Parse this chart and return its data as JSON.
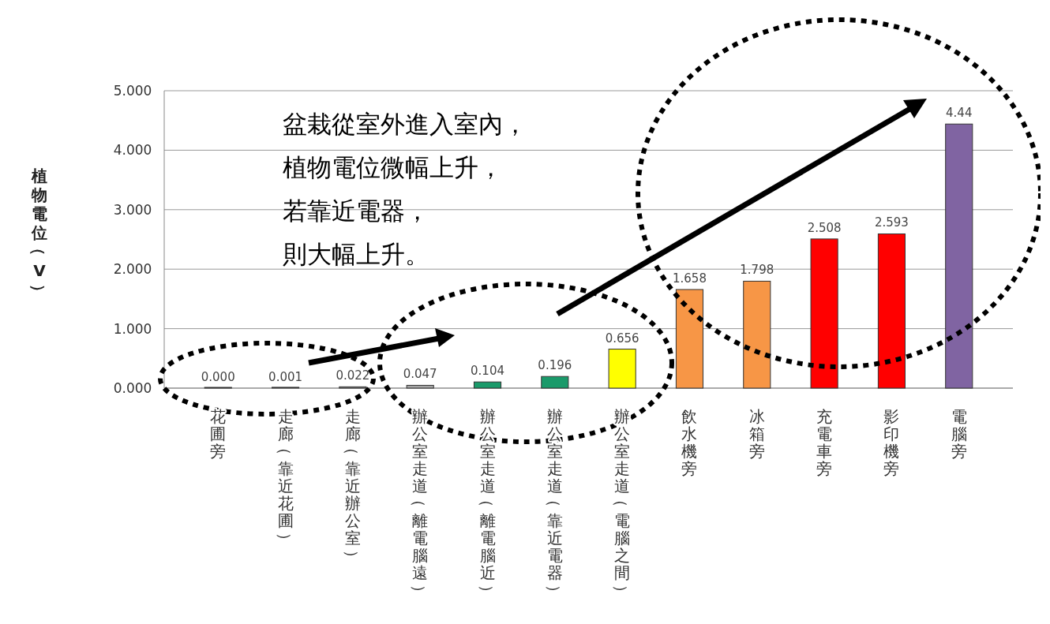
{
  "chart_data": {
    "type": "bar",
    "ylabel": "植物電位（V）",
    "categories": [
      "花圃旁",
      "走廊（靠近花圃）",
      "走廊（靠近辦公室）",
      "辦公室走道（離電腦遠）",
      "辦公室走道（離電腦近）",
      "辦公室走道（靠近電器）",
      "辦公室走道（電腦之間）",
      "飲水機旁",
      "冰箱旁",
      "充電車旁",
      "影印機旁",
      "電腦旁"
    ],
    "values": [
      0.0,
      0.001,
      0.022,
      0.047,
      0.104,
      0.196,
      0.656,
      1.658,
      1.798,
      2.508,
      2.593,
      4.44
    ],
    "value_labels": [
      "0.000",
      "0.001",
      "0.022",
      "0.047",
      "0.104",
      "0.196",
      "0.656",
      "1.658",
      "1.798",
      "2.508",
      "2.593",
      "4.44"
    ],
    "colors": [
      "#808080",
      "#808080",
      "#808080",
      "#a6a6a6",
      "#1a9a6a",
      "#1a9a6a",
      "#ffff00",
      "#f79646",
      "#f79646",
      "#ff0000",
      "#ff0000",
      "#8064a2"
    ],
    "ylim": [
      0,
      5
    ],
    "yticks": [
      {
        "value": 0,
        "label": "0.000"
      },
      {
        "value": 1,
        "label": "1.000"
      },
      {
        "value": 2,
        "label": "2.000"
      },
      {
        "value": 3,
        "label": "3.000"
      },
      {
        "value": 4,
        "label": "4.000"
      },
      {
        "value": 5,
        "label": "5.000"
      }
    ],
    "grid": "y",
    "annotations": [
      "盆栽從室外進入室內，",
      "植物電位微幅上升，",
      "若靠近電器，",
      "則大幅上升。"
    ]
  }
}
